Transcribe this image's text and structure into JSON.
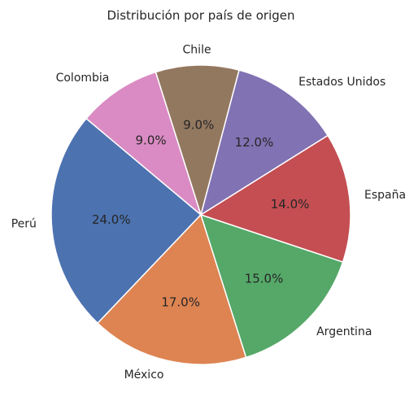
{
  "chart_data": {
    "type": "pie",
    "title": "Distribución por país de origen",
    "categories": [
      "Perú",
      "México",
      "Argentina",
      "España",
      "Estados Unidos",
      "Chile",
      "Colombia"
    ],
    "values": [
      24.0,
      17.0,
      15.0,
      14.0,
      12.0,
      9.0,
      9.0
    ],
    "percent_labels": [
      "24.0%",
      "17.0%",
      "15.0%",
      "14.0%",
      "12.0%",
      "9.0%",
      "9.0%"
    ],
    "colors": [
      "#4c72b0",
      "#dd8452",
      "#55a868",
      "#c44e52",
      "#8172b3",
      "#937860",
      "#da8bc3"
    ],
    "start_angle_deg": 140,
    "direction": "counterclockwise"
  }
}
